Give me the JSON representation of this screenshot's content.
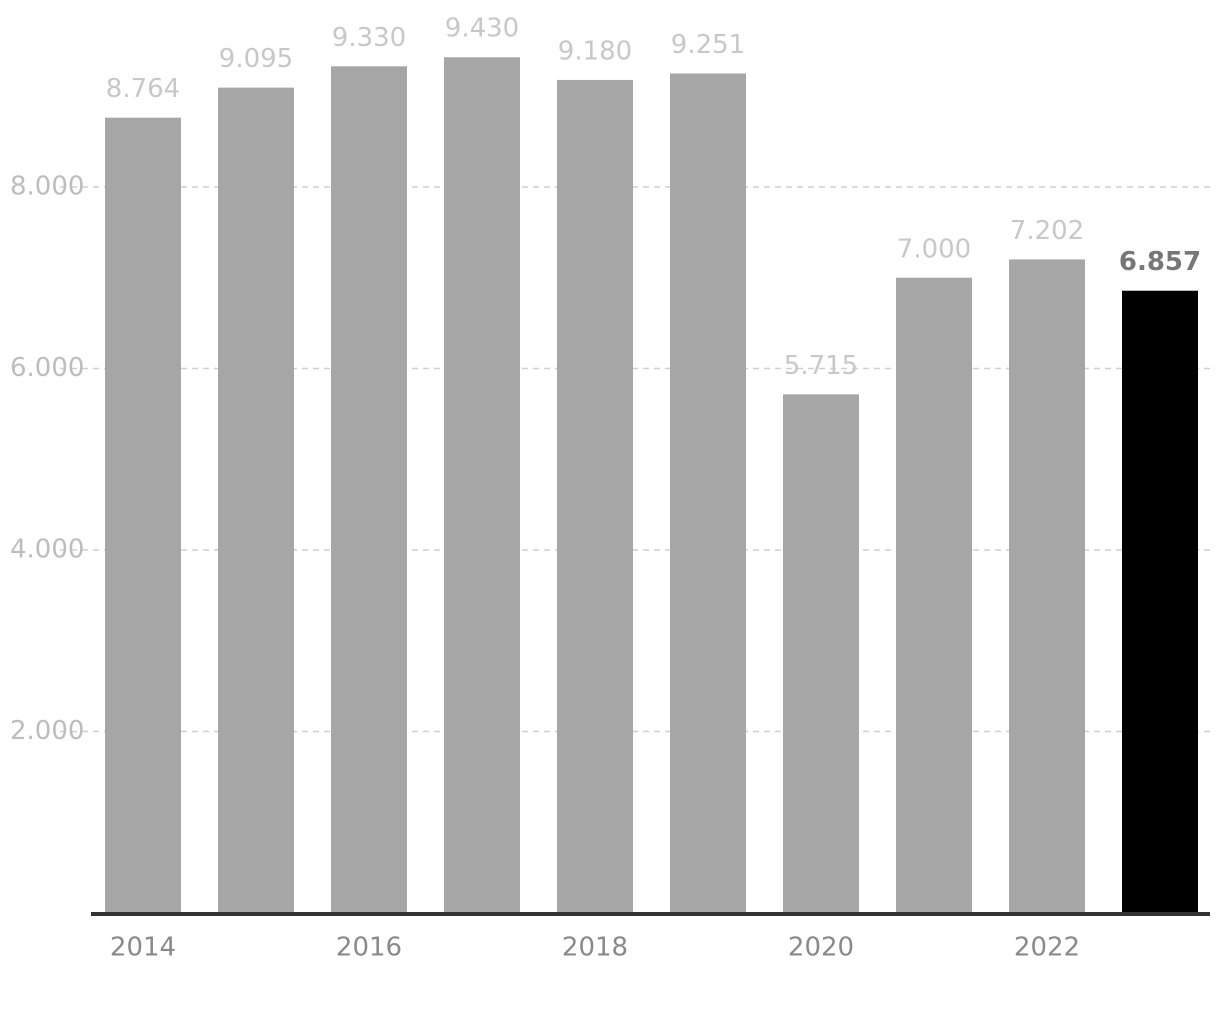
{
  "chart_data": {
    "type": "bar",
    "categories": [
      "2014",
      null,
      "2016",
      null,
      "2018",
      null,
      "2020",
      null,
      "2022",
      null
    ],
    "values": [
      8764,
      9095,
      9330,
      9430,
      9180,
      9251,
      5715,
      7000,
      7202,
      6857
    ],
    "value_labels": [
      "8.764",
      "9.095",
      "9.330",
      "9.430",
      "9.180",
      "9.251",
      "5.715",
      "7.000",
      "7.202",
      "6.857"
    ],
    "colors": [
      "#a6a6a6",
      "#a6a6a6",
      "#a6a6a6",
      "#a6a6a6",
      "#a6a6a6",
      "#a6a6a6",
      "#a6a6a6",
      "#a6a6a6",
      "#a6a6a6",
      "#000000"
    ],
    "ylim": [
      0,
      10000
    ],
    "yticks": [
      {
        "value": 2000,
        "label": "2.000"
      },
      {
        "value": 4000,
        "label": "4.000"
      },
      {
        "value": 6000,
        "label": "6.000"
      },
      {
        "value": 8000,
        "label": "8.000"
      }
    ],
    "grid": true
  }
}
